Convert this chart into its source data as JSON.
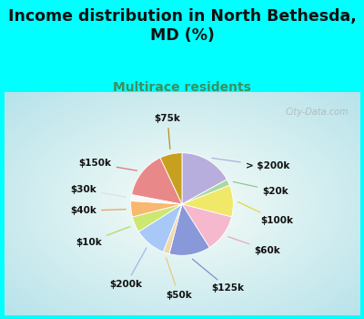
{
  "title": "Income distribution in North Bethesda,\nMD (%)",
  "subtitle": "Multirace residents",
  "bg_color": "#00FFFF",
  "chart_bg_outer": "#c8edd8",
  "chart_bg_inner": "#f5fdf5",
  "labels": [
    "> $200k",
    "$20k",
    "$100k",
    "$60k",
    "$125k",
    "$50k",
    "$200k",
    "$10k",
    "$40k",
    "$30k",
    "$150k",
    "$75k"
  ],
  "sizes": [
    17,
    2,
    10,
    12,
    13,
    2,
    10,
    5,
    5,
    2,
    15,
    7
  ],
  "colors": [
    "#b8aede",
    "#a8d8a0",
    "#f0e868",
    "#f5b8cc",
    "#8898d8",
    "#f0d8a8",
    "#a8c8f8",
    "#cce870",
    "#f8b870",
    "#f8f8f8",
    "#e88888",
    "#c8a020"
  ],
  "line_colors": [
    "#b0b0e0",
    "#90c890",
    "#e0d840",
    "#e8a8c0",
    "#8090c8",
    "#e8c880",
    "#a0b8f0",
    "#b8d860",
    "#e8a060",
    "#e0e0e0",
    "#d87878",
    "#b89018"
  ],
  "watermark": "City-Data.com",
  "label_fontsize": 7.5,
  "title_fontsize": 12.5,
  "subtitle_fontsize": 10,
  "title_color": "#111111",
  "subtitle_color": "#3a9060"
}
